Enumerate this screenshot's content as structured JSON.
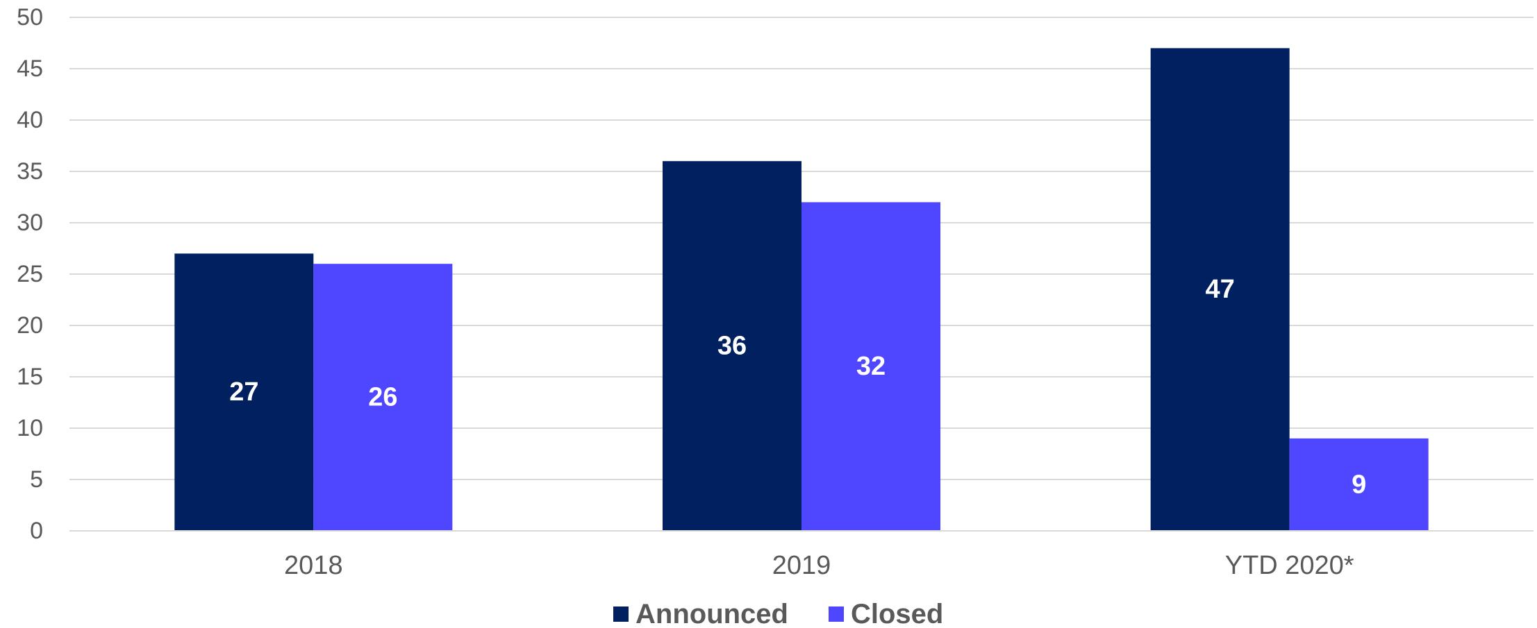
{
  "chart_data": {
    "type": "bar",
    "categories": [
      "2018",
      "2019",
      "YTD 2020*"
    ],
    "series": [
      {
        "name": "Announced",
        "values": [
          27,
          36,
          47
        ],
        "color": "#002060"
      },
      {
        "name": "Closed",
        "values": [
          26,
          32,
          9
        ],
        "color": "#4f46ff"
      }
    ],
    "yticks": [
      "0",
      "5",
      "10",
      "15",
      "20",
      "25",
      "30",
      "35",
      "40",
      "45",
      "50"
    ],
    "ylim": [
      0,
      50
    ],
    "grid": true,
    "legend_position": "bottom",
    "data_labels": true
  }
}
